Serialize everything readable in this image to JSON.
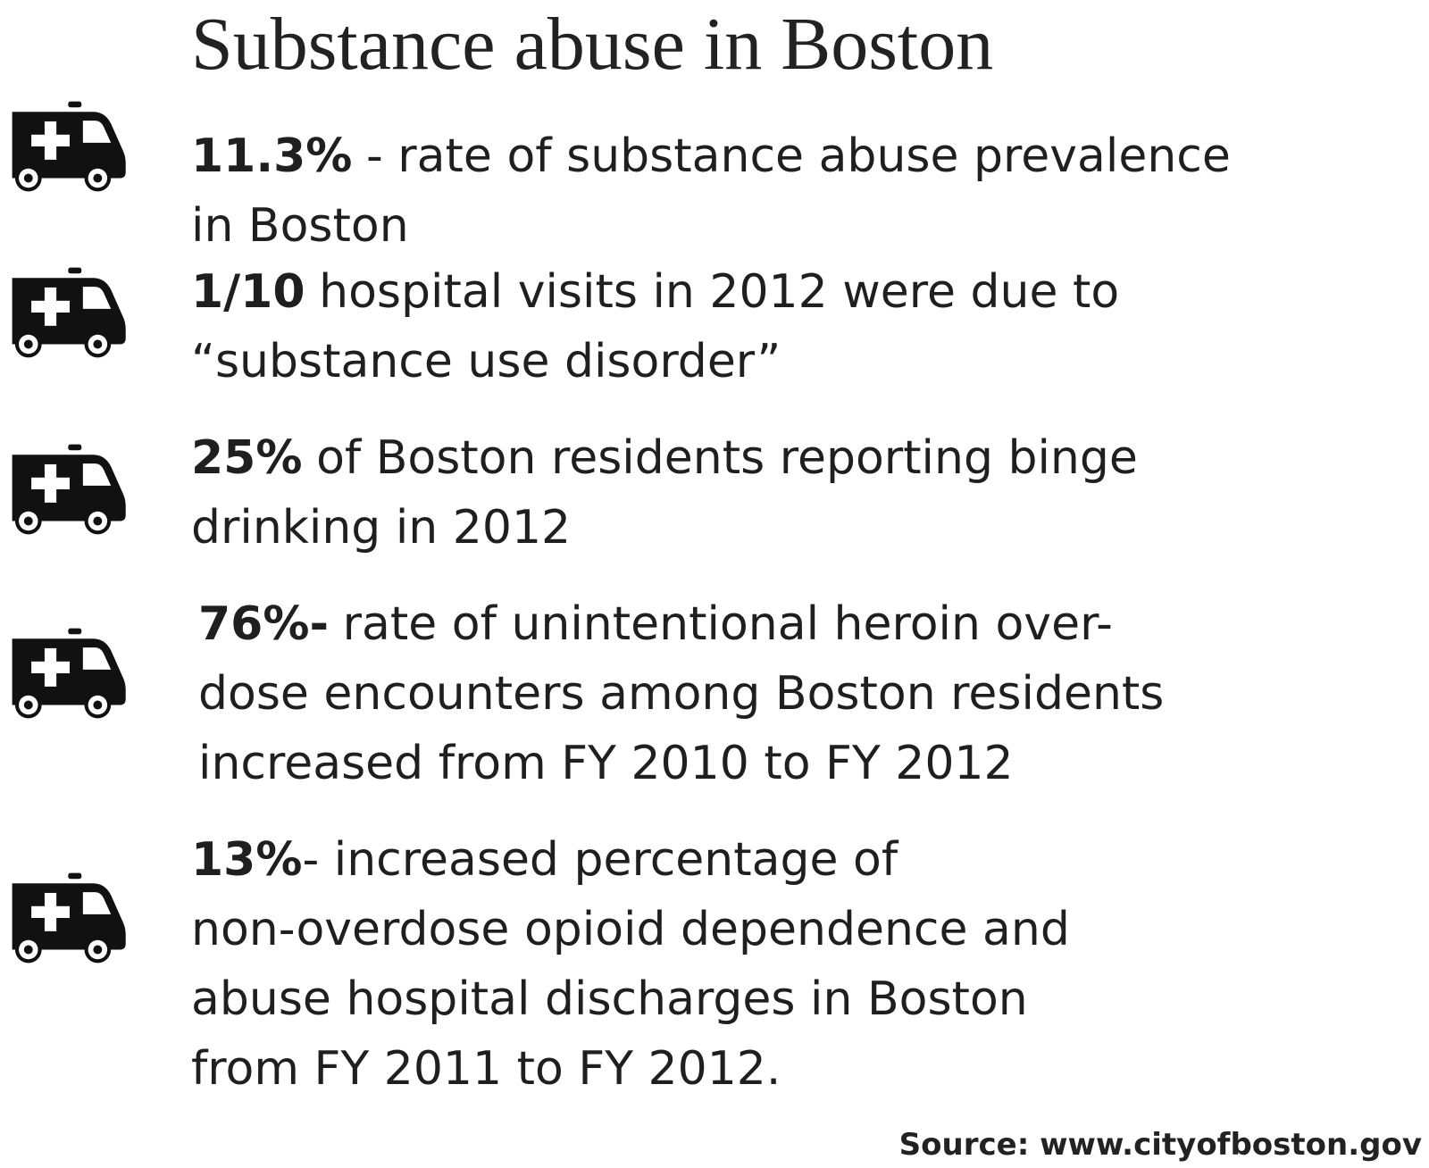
{
  "header": {
    "title": "Substance abuse in Boston"
  },
  "items": [
    {
      "bold": "11.3%",
      "lines": [
        "- rate of substance abuse prevalence",
        "in Boston"
      ]
    },
    {
      "bold": "1/10",
      "lines": [
        "hospital visits in 2012 were due to",
        "“substance use disorder”"
      ]
    },
    {
      "bold": "25%",
      "lines": [
        "of Boston residents reporting binge",
        "drinking in 2012"
      ]
    },
    {
      "bold": "76%-",
      "lines": [
        "rate of unintentional heroin over-",
        "dose encounters among Boston residents",
        "increased from FY 2010 to FY 2012"
      ]
    },
    {
      "bold": "13%",
      "lines": [
        "- increased percentage of",
        "non-overdose opioid dependence and",
        "abuse hospital discharges in Boston",
        "from FY 2011 to FY 2012."
      ]
    }
  ],
  "footer": {
    "source": "Source: www.cityofboston.gov"
  }
}
